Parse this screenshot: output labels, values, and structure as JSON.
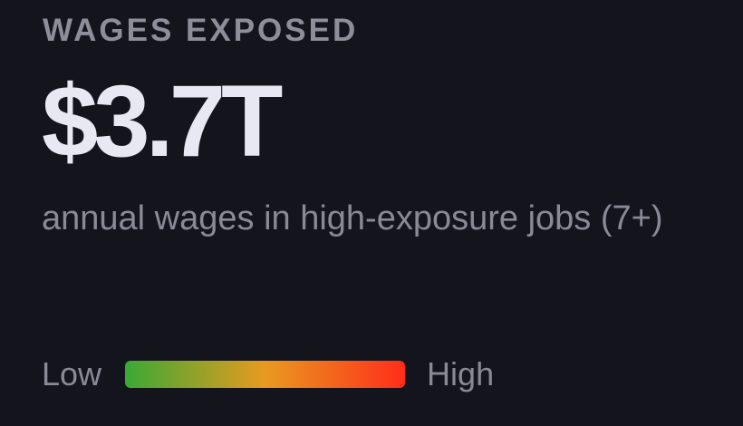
{
  "card": {
    "label": "WAGES EXPOSED",
    "value": "$3.7T",
    "description": "annual wages in high-exposure jobs (7+)"
  },
  "legend": {
    "low_label": "Low",
    "high_label": "High",
    "gradient_colors": [
      "#3aa935",
      "#e89a20",
      "#ff2d1a"
    ]
  }
}
